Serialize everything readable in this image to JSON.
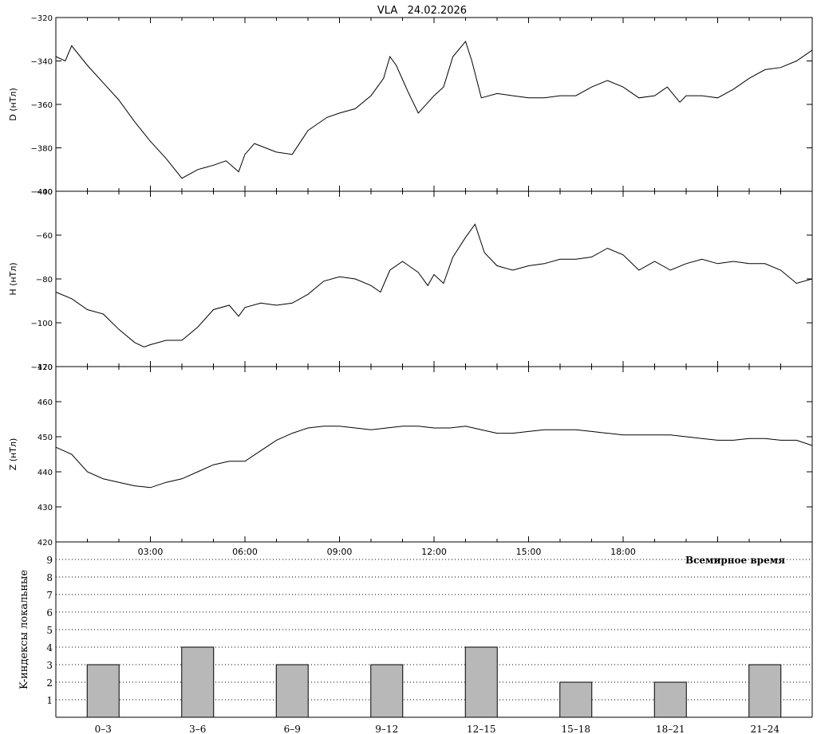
{
  "chart_data": [
    {
      "type": "line",
      "title": "VLA   24.02.2026",
      "ylabel": "D (нТл)",
      "ylim": [
        -400,
        -320
      ],
      "yticks": [
        -400,
        -380,
        -360,
        -340,
        -320
      ],
      "x": [
        0,
        0.3,
        0.5,
        1.0,
        1.5,
        2.0,
        2.5,
        3.0,
        3.5,
        4.0,
        4.5,
        5.0,
        5.4,
        5.8,
        6.0,
        6.3,
        7.0,
        7.5,
        8.0,
        8.6,
        9.0,
        9.5,
        10.0,
        10.4,
        10.6,
        10.8,
        11.2,
        11.5,
        12.0,
        12.3,
        12.6,
        13.0,
        13.2,
        13.5,
        14.0,
        14.5,
        15.0,
        15.5,
        16.0,
        16.5,
        17.0,
        17.5,
        18.0,
        18.5,
        19.0,
        19.4,
        19.8,
        20.0,
        20.5,
        21.0,
        21.5,
        22.0,
        22.5,
        23.0,
        23.5,
        24.0
      ],
      "values": [
        -338,
        -340,
        -333,
        -342,
        -350,
        -358,
        -368,
        -377,
        -385,
        -394,
        -390,
        -388,
        -386,
        -391,
        -383,
        -378,
        -382,
        -383,
        -372,
        -366,
        -364,
        -362,
        -356,
        -348,
        -338,
        -342,
        -355,
        -364,
        -356,
        -352,
        -338,
        -331,
        -340,
        -357,
        -355,
        -356,
        -357,
        -357,
        -356,
        -356,
        -352,
        -349,
        -352,
        -357,
        -356,
        -352,
        -359,
        -356,
        -356,
        -357,
        -353,
        -348,
        -344,
        -343,
        -340,
        -335
      ]
    },
    {
      "type": "line",
      "ylabel": "H (нТл)",
      "ylim": [
        -120,
        -40
      ],
      "yticks": [
        -120,
        -100,
        -80,
        -60,
        -40
      ],
      "x": [
        0,
        0.5,
        1.0,
        1.5,
        2.0,
        2.5,
        2.8,
        3.0,
        3.5,
        4.0,
        4.5,
        5.0,
        5.5,
        5.8,
        6.0,
        6.5,
        7.0,
        7.5,
        8.0,
        8.5,
        9.0,
        9.5,
        10.0,
        10.3,
        10.6,
        11.0,
        11.5,
        11.8,
        12.0,
        12.3,
        12.6,
        13.0,
        13.3,
        13.6,
        14.0,
        14.5,
        15.0,
        15.5,
        16.0,
        16.5,
        17.0,
        17.5,
        18.0,
        18.5,
        19.0,
        19.5,
        20.0,
        20.5,
        21.0,
        21.5,
        22.0,
        22.5,
        23.0,
        23.5,
        24.0
      ],
      "values": [
        -86,
        -89,
        -94,
        -96,
        -103,
        -109,
        -111,
        -110,
        -108,
        -108,
        -102,
        -94,
        -92,
        -97,
        -93,
        -91,
        -92,
        -91,
        -87,
        -81,
        -79,
        -80,
        -83,
        -86,
        -76,
        -72,
        -77,
        -83,
        -78,
        -82,
        -70,
        -61,
        -55,
        -68,
        -74,
        -76,
        -74,
        -73,
        -71,
        -71,
        -70,
        -66,
        -69,
        -76,
        -72,
        -76,
        -73,
        -71,
        -73,
        -72,
        -73,
        -73,
        -76,
        -82,
        -80
      ]
    },
    {
      "type": "line",
      "ylabel": "Z (нТл)",
      "ylim": [
        420,
        470
      ],
      "yticks": [
        420,
        430,
        440,
        450,
        460,
        470
      ],
      "x": [
        0,
        0.5,
        1.0,
        1.5,
        2.0,
        2.5,
        3.0,
        3.5,
        4.0,
        4.5,
        5.0,
        5.5,
        6.0,
        6.5,
        7.0,
        7.5,
        8.0,
        8.5,
        9.0,
        9.5,
        10.0,
        10.5,
        11.0,
        11.5,
        12.0,
        12.5,
        13.0,
        13.5,
        14.0,
        14.5,
        15.0,
        15.5,
        16.0,
        16.5,
        17.0,
        17.5,
        18.0,
        18.5,
        19.0,
        19.5,
        20.0,
        20.5,
        21.0,
        21.5,
        22.0,
        22.5,
        23.0,
        23.5,
        24.0
      ],
      "values": [
        447,
        445,
        440,
        438,
        437,
        436,
        435.5,
        437,
        438,
        440,
        442,
        443,
        443,
        446,
        449,
        451,
        452.5,
        453,
        453,
        452.5,
        452,
        452.5,
        453,
        453,
        452.5,
        452.5,
        453,
        452,
        451,
        451,
        451.5,
        452,
        452,
        452,
        451.5,
        451,
        450.5,
        450.5,
        450.5,
        450.5,
        450,
        449.5,
        449,
        449,
        449.5,
        449.5,
        449,
        449,
        447.5
      ]
    },
    {
      "type": "bar",
      "title": "",
      "ylabel": "K-индексы локальные",
      "xlabel": "Всемирное время",
      "ylim": [
        0,
        10
      ],
      "yticks": [
        1,
        2,
        3,
        4,
        5,
        6,
        7,
        8,
        9
      ],
      "categories": [
        "0–3",
        "3–6",
        "6–9",
        "9–12",
        "12–15",
        "15–18",
        "18–21",
        "21–24"
      ],
      "values": [
        3,
        4,
        3,
        3,
        4,
        2,
        2,
        3
      ],
      "bar_color": "#b8b8b8",
      "grid": "dotted"
    }
  ],
  "time_axis": {
    "labels": [
      "03:00",
      "06:00",
      "09:00",
      "12:00",
      "15:00",
      "18:00"
    ],
    "hours": [
      3,
      6,
      9,
      12,
      15,
      18
    ],
    "range_hours": [
      0,
      24
    ]
  },
  "colors": {
    "line": "#000000",
    "bar": "#b8b8b8",
    "background": "#ffffff"
  }
}
